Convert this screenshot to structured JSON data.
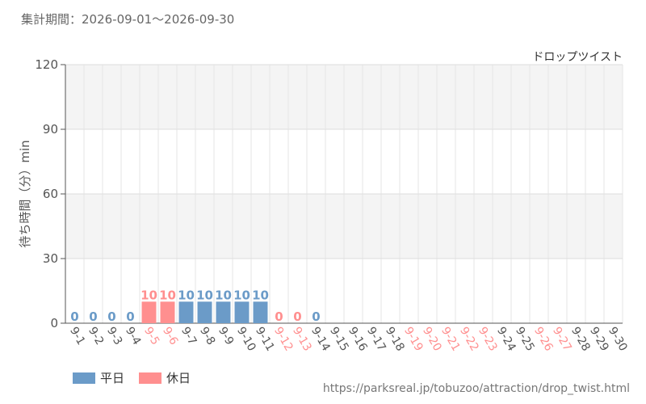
{
  "period_text": "集計期間：2026-09-01～2026-09-30",
  "source_url": "https://parksreal.jp/tobuzoo/attraction/drop_twist.html",
  "legend": [
    {
      "label": "平日",
      "color": "#6b9bc8"
    },
    {
      "label": "休日",
      "color": "#ff8f8f"
    }
  ],
  "chart_data": {
    "type": "bar",
    "title": "ドロップツイスト",
    "ylabel": "待ち時間（分）min",
    "xlabel": "",
    "ylim": [
      0,
      120
    ],
    "yticks": [
      0,
      30,
      60,
      90,
      120
    ],
    "grid": true,
    "categories": [
      "9-1",
      "9-2",
      "9-3",
      "9-4",
      "9-5",
      "9-6",
      "9-7",
      "9-8",
      "9-9",
      "9-10",
      "9-11",
      "9-12",
      "9-13",
      "9-14",
      "9-15",
      "9-16",
      "9-17",
      "9-18",
      "9-19",
      "9-20",
      "9-21",
      "9-22",
      "9-23",
      "9-24",
      "9-25",
      "9-26",
      "9-27",
      "9-28",
      "9-29",
      "9-30"
    ],
    "values": [
      0,
      0,
      0,
      0,
      10,
      10,
      10,
      10,
      10,
      10,
      10,
      0,
      0,
      0,
      null,
      null,
      null,
      null,
      null,
      null,
      null,
      null,
      null,
      null,
      null,
      null,
      null,
      null,
      null,
      null
    ],
    "day_type": [
      "weekday",
      "weekday",
      "weekday",
      "weekday",
      "holiday",
      "holiday",
      "weekday",
      "weekday",
      "weekday",
      "weekday",
      "weekday",
      "holiday",
      "holiday",
      "weekday",
      "weekday",
      "weekday",
      "weekday",
      "weekday",
      "holiday",
      "holiday",
      "holiday",
      "holiday",
      "holiday",
      "weekday",
      "weekday",
      "holiday",
      "holiday",
      "weekday",
      "weekday",
      "weekday"
    ],
    "colors": {
      "weekday": "#6b9bc8",
      "holiday": "#ff8f8f",
      "axis_text": "#555555"
    }
  }
}
